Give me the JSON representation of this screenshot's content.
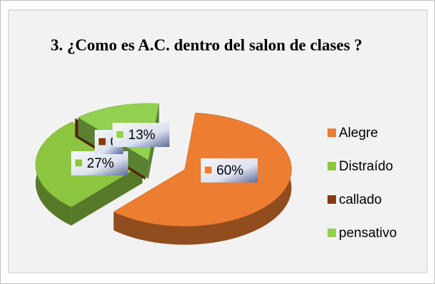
{
  "chart_data": {
    "type": "pie3d",
    "title": "3. ¿Como es A.C. dentro del salon de clases ?",
    "categories": [
      "Alegre",
      "Distraído",
      "callado",
      "pensativo"
    ],
    "values": [
      60,
      27,
      0,
      13
    ],
    "value_labels": [
      "60%",
      "27%",
      "0%",
      "13%"
    ],
    "colors": [
      "#ED7D31",
      "#8CC63F",
      "#843C0C",
      "#92D050"
    ],
    "legend": "right"
  }
}
